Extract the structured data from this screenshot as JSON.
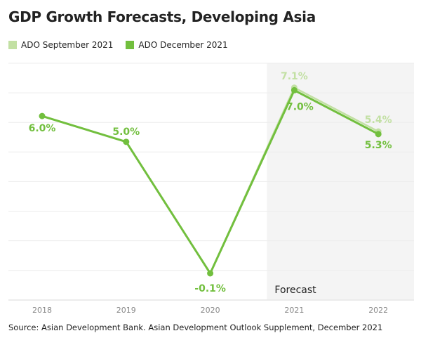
{
  "chart_data": {
    "type": "line",
    "title": "GDP Growth Forecasts, Developing Asia",
    "categories": [
      "2018",
      "2019",
      "2020",
      "2021",
      "2022"
    ],
    "series": [
      {
        "name": "ADO September 2021",
        "color": "#c2e0a3",
        "values": [
          6.0,
          5.0,
          -0.1,
          7.1,
          5.4
        ],
        "labels": [
          null,
          null,
          null,
          "7.1%",
          "5.4%"
        ]
      },
      {
        "name": "ADO December 2021",
        "color": "#72bf3e",
        "values": [
          6.0,
          5.0,
          -0.1,
          7.0,
          5.3
        ],
        "labels": [
          "6.0%",
          "5.0%",
          "-0.1%",
          "7.0%",
          "5.3%"
        ]
      }
    ],
    "forecast_label": "Forecast",
    "forecast_categories": [
      "2021",
      "2022"
    ],
    "forecast_shade_color": "#f4f4f4",
    "ylim": [
      -1,
      8
    ],
    "grid": true,
    "legend_position": "top-left"
  },
  "source": "Source: Asian Development Bank. Asian Development Outlook Supplement, December 2021"
}
